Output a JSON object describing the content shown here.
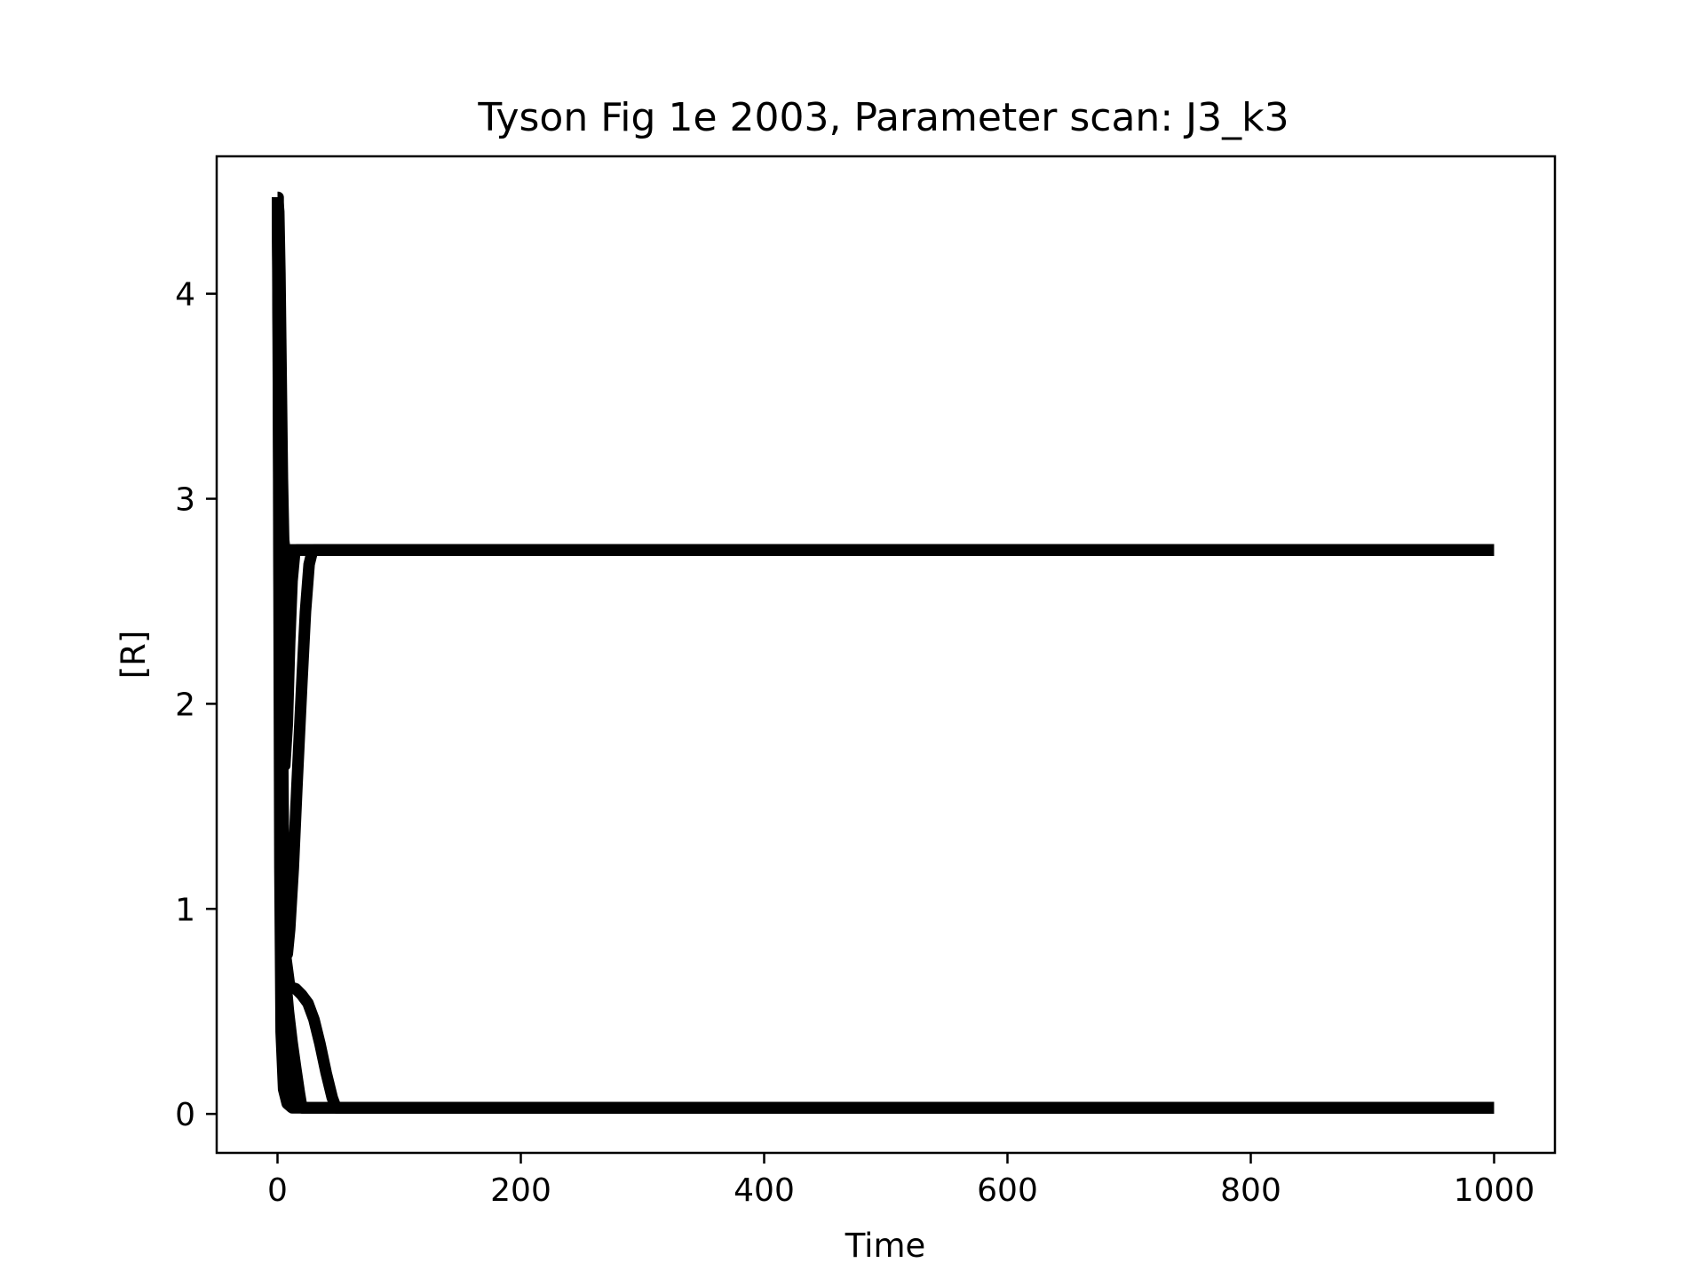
{
  "chart_data": {
    "type": "line",
    "title": "Tyson Fig 1e 2003, Parameter scan: J3_k3",
    "xlabel": "Time",
    "ylabel": "[R]",
    "xlim": [
      -50,
      1050
    ],
    "ylim": [
      -0.19,
      4.67
    ],
    "xticks": [
      0,
      200,
      400,
      600,
      800,
      1000
    ],
    "yticks": [
      0,
      1,
      2,
      3,
      4
    ],
    "grid": false,
    "legend": "none",
    "line_color": "#000000",
    "series": [
      {
        "x": [
          0,
          0.5,
          1,
          2,
          3,
          5,
          8,
          12,
          1000
        ],
        "y": [
          4.47,
          4.47,
          3.0,
          1.2,
          0.4,
          0.12,
          0.05,
          0.03,
          0.03
        ]
      },
      {
        "x": [
          0,
          1,
          2,
          3,
          5,
          8,
          12,
          16,
          20,
          1000
        ],
        "y": [
          4.47,
          3.2,
          1.8,
          0.9,
          0.45,
          0.25,
          0.12,
          0.06,
          0.03,
          0.03
        ]
      },
      {
        "x": [
          0,
          1,
          2,
          4,
          6,
          9,
          12,
          15,
          18,
          20,
          1000
        ],
        "y": [
          4.47,
          3.5,
          2.2,
          1.2,
          0.7,
          0.5,
          0.35,
          0.22,
          0.1,
          0.03,
          0.03
        ]
      },
      {
        "x": [
          0,
          1,
          2,
          4,
          6,
          10,
          15,
          20,
          25,
          30,
          35,
          40,
          45,
          48,
          1000
        ],
        "y": [
          4.47,
          3.6,
          2.3,
          1.3,
          0.8,
          0.62,
          0.61,
          0.58,
          0.54,
          0.46,
          0.34,
          0.2,
          0.08,
          0.03,
          0.03
        ]
      },
      {
        "x": [
          0,
          1,
          2,
          3,
          4,
          5,
          6,
          8,
          10,
          13,
          16,
          20,
          23,
          26,
          28,
          30,
          1000
        ],
        "y": [
          4.47,
          4.2,
          3.6,
          2.7,
          1.9,
          1.2,
          0.85,
          0.78,
          0.9,
          1.2,
          1.6,
          2.1,
          2.45,
          2.68,
          2.73,
          2.75,
          2.75
        ]
      },
      {
        "x": [
          0,
          1,
          2,
          3,
          4,
          5,
          6,
          8,
          10,
          12,
          14,
          16,
          1000
        ],
        "y": [
          4.47,
          4.2,
          3.6,
          2.9,
          2.3,
          1.8,
          1.7,
          1.9,
          2.3,
          2.6,
          2.73,
          2.75,
          2.75
        ]
      },
      {
        "x": [
          0,
          1,
          2,
          3,
          4,
          5,
          6,
          7,
          8,
          9,
          10,
          1000
        ],
        "y": [
          4.47,
          4.3,
          3.9,
          3.4,
          3.0,
          2.75,
          2.6,
          2.62,
          2.7,
          2.74,
          2.75,
          2.75
        ]
      },
      {
        "x": [
          0,
          1,
          2,
          3,
          4,
          5,
          6,
          1000
        ],
        "y": [
          4.47,
          4.4,
          4.1,
          3.6,
          3.1,
          2.8,
          2.75,
          2.75
        ]
      }
    ]
  }
}
